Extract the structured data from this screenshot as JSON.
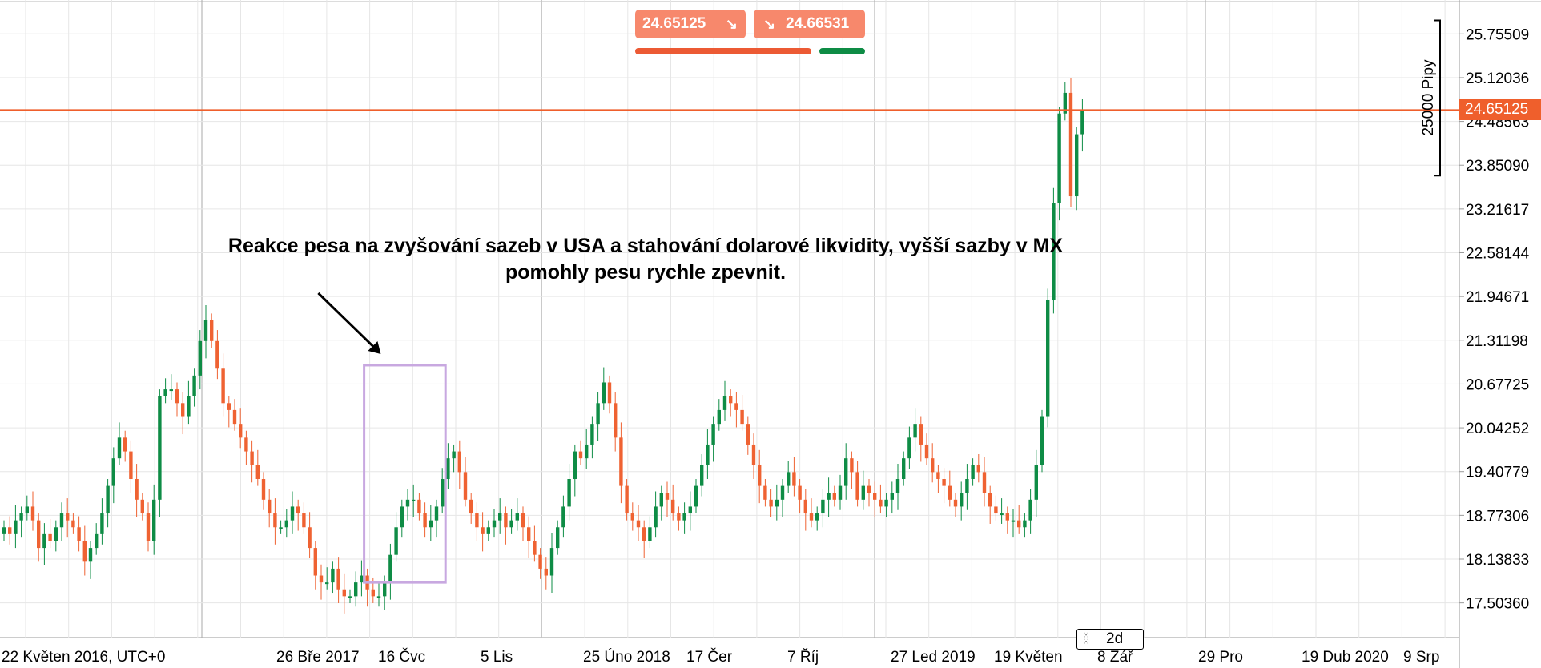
{
  "chart_data": {
    "type": "candlestick",
    "timeframe": "2d",
    "x_labels": [
      "22 Květen 2016, UTC+0",
      "26 Bře 2017",
      "16 Čvc",
      "5 Lis",
      "25 Úno 2018",
      "17 Čer",
      "7 Říj",
      "27 Led 2019",
      "19 Květen",
      "8 Zář",
      "29 Pro",
      "19 Dub 2020",
      "9 Srp"
    ],
    "y_ticks": [
      "25.75509",
      "25.12036",
      "24.48563",
      "23.85090",
      "23.21617",
      "22.58144",
      "21.94671",
      "21.31198",
      "20.67725",
      "20.04252",
      "19.40779",
      "18.77306",
      "18.13833",
      "17.50360"
    ],
    "y_range": [
      17.0,
      26.2
    ],
    "current_price": "24.65125",
    "current_price_value": 24.65125,
    "sell_price": "24.65125",
    "buy_price": "24.66531",
    "sell_ratio": 0.8,
    "measure_label": "25000 Pipy",
    "measure_range": [
      23.7,
      25.95
    ],
    "annotation": [
      "Reakce pesa na zvyšování sazeb v USA a stahování dolarové likvidity, vyšší sazby v MX",
      "pomohly pesu rychle zpevnit."
    ],
    "highlight_box": {
      "x_start": 63,
      "x_end": 76,
      "y_top": 20.95,
      "y_bottom": 17.8
    },
    "colors": {
      "up": "#0e8c45",
      "down": "#ef6232",
      "current": "#ef5f2c",
      "highlight": "#c8a8e0"
    },
    "closes": [
      18.6,
      18.5,
      18.7,
      18.8,
      18.9,
      18.7,
      18.3,
      18.5,
      18.4,
      18.6,
      18.8,
      18.7,
      18.6,
      18.4,
      18.1,
      18.3,
      18.5,
      18.8,
      19.2,
      19.6,
      19.9,
      19.7,
      19.3,
      19.0,
      18.8,
      18.4,
      19.0,
      20.5,
      20.6,
      20.6,
      20.4,
      20.2,
      20.5,
      20.8,
      21.3,
      21.6,
      21.3,
      20.9,
      20.4,
      20.3,
      20.1,
      19.9,
      19.7,
      19.5,
      19.3,
      19.0,
      18.8,
      18.6,
      18.6,
      18.7,
      18.9,
      18.8,
      18.6,
      18.3,
      17.9,
      17.8,
      17.8,
      18.0,
      17.7,
      17.6,
      17.6,
      17.8,
      17.9,
      17.7,
      17.6,
      17.6,
      17.8,
      18.2,
      18.6,
      18.9,
      19.0,
      19.0,
      18.8,
      18.6,
      18.7,
      18.9,
      19.3,
      19.6,
      19.7,
      19.4,
      19.0,
      18.8,
      18.6,
      18.5,
      18.6,
      18.7,
      18.8,
      18.6,
      18.7,
      18.8,
      18.6,
      18.4,
      18.2,
      18.0,
      17.9,
      18.3,
      18.6,
      18.9,
      19.3,
      19.7,
      19.6,
      19.8,
      20.1,
      20.4,
      20.7,
      20.4,
      19.9,
      19.2,
      18.8,
      18.7,
      18.6,
      18.4,
      18.6,
      18.9,
      19.1,
      19.0,
      18.8,
      18.7,
      18.8,
      18.9,
      19.2,
      19.5,
      19.8,
      20.1,
      20.3,
      20.5,
      20.4,
      20.3,
      20.1,
      19.8,
      19.5,
      19.2,
      19.0,
      18.9,
      19.0,
      19.2,
      19.4,
      19.2,
      19.0,
      18.8,
      18.7,
      18.8,
      19.0,
      19.1,
      19.0,
      19.2,
      19.6,
      19.4,
      19.0,
      19.2,
      19.1,
      19.0,
      18.9,
      19.0,
      19.1,
      19.3,
      19.6,
      19.9,
      20.1,
      19.8,
      19.6,
      19.4,
      19.3,
      19.2,
      19.0,
      18.9,
      19.1,
      19.3,
      19.5,
      19.4,
      19.1,
      18.9,
      18.8,
      18.8,
      18.7,
      18.7,
      18.6,
      18.7,
      19.0,
      19.5,
      20.2,
      21.9,
      23.3,
      24.6,
      24.9,
      23.4,
      24.3,
      24.65125
    ]
  },
  "toolbar": {
    "sell_label": "24.65125",
    "buy_label": "24.66531",
    "timeframe_label": "2d"
  }
}
